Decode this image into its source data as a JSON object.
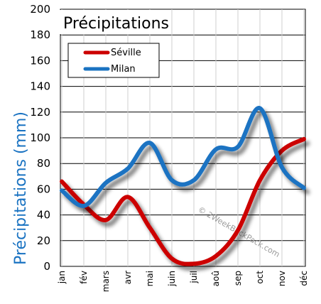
{
  "chart_data": {
    "type": "line",
    "title": "Précipitations",
    "ylabel": "Précipitations (mm)",
    "xlabel": "",
    "categories": [
      "jan",
      "fév",
      "mars",
      "avr",
      "mai",
      "juin",
      "juil",
      "aoû",
      "sep",
      "oct",
      "nov",
      "déc"
    ],
    "ylim": [
      0,
      200
    ],
    "yticks": [
      "0",
      "20",
      "40",
      "60",
      "80",
      "100",
      "120",
      "140",
      "160",
      "180",
      "200"
    ],
    "grid": true,
    "legend_position": "top-left",
    "series": [
      {
        "name": "Séville",
        "color": "#cc0000",
        "values": [
          66,
          48,
          36,
          54,
          30,
          6,
          2,
          8,
          28,
          67,
          90,
          99
        ]
      },
      {
        "name": "Milan",
        "color": "#1a73c2",
        "values": [
          59,
          47,
          65,
          76,
          96,
          67,
          67,
          91,
          93,
          123,
          77,
          61
        ]
      }
    ],
    "watermark": "© 2WeekBackPack.com"
  }
}
